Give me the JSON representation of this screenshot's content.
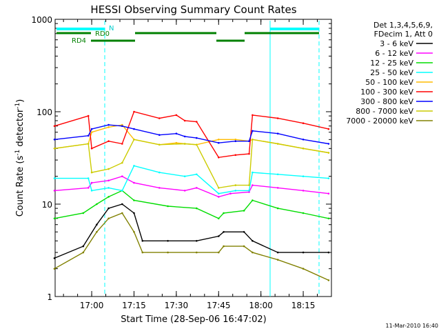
{
  "chart_data": {
    "type": "line",
    "title": "HESSI Observing Summary Count Rates",
    "xlabel": "Start Time (28-Sep-06 16:47:02)",
    "ylabel_main": "Count Rate (s",
    "ylabel_sup1": "-1",
    "ylabel_mid": " detector",
    "ylabel_sup2": "-1",
    "ylabel_end": ")",
    "yscale": "log",
    "ylim": [
      1,
      1000
    ],
    "xlim": [
      "16:47:02",
      "18:25:00"
    ],
    "x_ticks": [
      "17:00",
      "17:15",
      "17:30",
      "17:45",
      "18:00",
      "18:15"
    ],
    "y_ticks": [
      "1",
      "10",
      "100",
      "1000"
    ],
    "legend": {
      "header1": "Det 1,3,4,5,6,9,",
      "header2": "FDecim 1, Att 0",
      "placement": "right"
    },
    "footer_timestamp": "11-Mar-2010 16:40",
    "series": [
      {
        "name": "3 - 6 keV",
        "color": "#000000",
        "values": [
          [
            16.78,
            2.6
          ],
          [
            16.95,
            3.5
          ],
          [
            17.03,
            6
          ],
          [
            17.1,
            9
          ],
          [
            17.18,
            10
          ],
          [
            17.25,
            8
          ],
          [
            17.3,
            4
          ],
          [
            17.45,
            4
          ],
          [
            17.62,
            4
          ],
          [
            17.75,
            4.5
          ],
          [
            17.78,
            5
          ],
          [
            17.9,
            5
          ],
          [
            17.95,
            4
          ],
          [
            18.1,
            3
          ],
          [
            18.25,
            3
          ],
          [
            18.4,
            3
          ]
        ]
      },
      {
        "name": "6 - 12 keV",
        "color": "#ff00ff",
        "values": [
          [
            16.78,
            14
          ],
          [
            16.98,
            15
          ],
          [
            17.0,
            17
          ],
          [
            17.1,
            18
          ],
          [
            17.18,
            20
          ],
          [
            17.25,
            17
          ],
          [
            17.4,
            15
          ],
          [
            17.55,
            14
          ],
          [
            17.62,
            15
          ],
          [
            17.75,
            12
          ],
          [
            17.82,
            13
          ],
          [
            17.93,
            13.5
          ],
          [
            17.95,
            16
          ],
          [
            18.1,
            15
          ],
          [
            18.25,
            14
          ],
          [
            18.4,
            13
          ]
        ]
      },
      {
        "name": "12 - 25 keV",
        "color": "#00dd00",
        "values": [
          [
            16.78,
            7
          ],
          [
            16.95,
            8
          ],
          [
            17.03,
            10
          ],
          [
            17.1,
            12
          ],
          [
            17.18,
            14
          ],
          [
            17.25,
            11
          ],
          [
            17.45,
            9.5
          ],
          [
            17.62,
            9
          ],
          [
            17.75,
            7
          ],
          [
            17.78,
            8
          ],
          [
            17.9,
            8.5
          ],
          [
            17.95,
            11
          ],
          [
            18.1,
            9
          ],
          [
            18.25,
            8
          ],
          [
            18.4,
            7
          ]
        ]
      },
      {
        "name": "25 - 50 keV",
        "color": "#00ffff",
        "values": [
          [
            16.78,
            19
          ],
          [
            16.98,
            19
          ],
          [
            17.0,
            14
          ],
          [
            17.1,
            15
          ],
          [
            17.18,
            14
          ],
          [
            17.25,
            26
          ],
          [
            17.4,
            22
          ],
          [
            17.55,
            20
          ],
          [
            17.62,
            21
          ],
          [
            17.75,
            13
          ],
          [
            17.85,
            14
          ],
          [
            17.93,
            14
          ],
          [
            17.95,
            22
          ],
          [
            18.1,
            21
          ],
          [
            18.25,
            20
          ],
          [
            18.4,
            19
          ]
        ]
      },
      {
        "name": "50 - 100 keV",
        "color": "#ffbb00",
        "values": [
          [
            16.78,
            40
          ],
          [
            16.98,
            45
          ],
          [
            17.0,
            60
          ],
          [
            17.1,
            68
          ],
          [
            17.18,
            72
          ],
          [
            17.25,
            50
          ],
          [
            17.4,
            44
          ],
          [
            17.5,
            46
          ],
          [
            17.55,
            45
          ],
          [
            17.62,
            44
          ],
          [
            17.75,
            50
          ],
          [
            17.85,
            50
          ],
          [
            17.93,
            48
          ],
          [
            17.95,
            50
          ],
          [
            18.1,
            45
          ],
          [
            18.25,
            40
          ],
          [
            18.4,
            36
          ]
        ]
      },
      {
        "name": "100 - 300 keV",
        "color": "#ff0000",
        "values": [
          [
            16.78,
            70
          ],
          [
            16.98,
            90
          ],
          [
            17.0,
            40
          ],
          [
            17.1,
            48
          ],
          [
            17.18,
            45
          ],
          [
            17.25,
            100
          ],
          [
            17.4,
            85
          ],
          [
            17.5,
            92
          ],
          [
            17.55,
            80
          ],
          [
            17.62,
            78
          ],
          [
            17.75,
            32
          ],
          [
            17.85,
            34
          ],
          [
            17.93,
            35
          ],
          [
            17.95,
            92
          ],
          [
            18.1,
            85
          ],
          [
            18.25,
            75
          ],
          [
            18.4,
            65
          ]
        ]
      },
      {
        "name": "300 - 800 keV",
        "color": "#0000ff",
        "values": [
          [
            16.78,
            50
          ],
          [
            16.98,
            55
          ],
          [
            17.0,
            65
          ],
          [
            17.1,
            72
          ],
          [
            17.18,
            70
          ],
          [
            17.25,
            65
          ],
          [
            17.4,
            56
          ],
          [
            17.5,
            58
          ],
          [
            17.55,
            54
          ],
          [
            17.62,
            52
          ],
          [
            17.75,
            46
          ],
          [
            17.85,
            48
          ],
          [
            17.93,
            48
          ],
          [
            17.95,
            62
          ],
          [
            18.1,
            58
          ],
          [
            18.25,
            50
          ],
          [
            18.4,
            45
          ]
        ]
      },
      {
        "name": "800 - 7000 keV",
        "color": "#cccc00",
        "values": [
          [
            16.78,
            40
          ],
          [
            16.98,
            45
          ],
          [
            17.0,
            22
          ],
          [
            17.1,
            24
          ],
          [
            17.18,
            28
          ],
          [
            17.25,
            50
          ],
          [
            17.4,
            44
          ],
          [
            17.55,
            45
          ],
          [
            17.62,
            44
          ],
          [
            17.75,
            15
          ],
          [
            17.85,
            16
          ],
          [
            17.93,
            16
          ],
          [
            17.95,
            50
          ],
          [
            18.1,
            45
          ],
          [
            18.25,
            40
          ],
          [
            18.4,
            36
          ]
        ]
      },
      {
        "name": "7000 - 20000 keV",
        "color": "#808000",
        "values": [
          [
            16.78,
            2
          ],
          [
            16.95,
            3
          ],
          [
            17.03,
            5
          ],
          [
            17.1,
            7
          ],
          [
            17.18,
            8
          ],
          [
            17.25,
            5
          ],
          [
            17.3,
            3
          ],
          [
            17.45,
            3
          ],
          [
            17.62,
            3
          ],
          [
            17.75,
            3
          ],
          [
            17.78,
            3.5
          ],
          [
            17.9,
            3.5
          ],
          [
            17.95,
            3
          ],
          [
            18.1,
            2.5
          ],
          [
            18.25,
            2
          ],
          [
            18.4,
            1.5
          ]
        ]
      }
    ],
    "flag_labels": {
      "n": "N",
      "rd0": "RD0",
      "rd4": "RD4"
    },
    "grid": false
  }
}
